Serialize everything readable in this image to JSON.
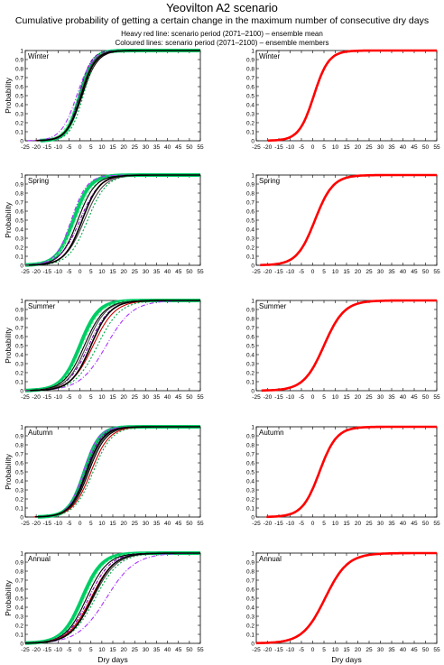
{
  "header": {
    "title": "Yeovilton A2 scenario",
    "subtitle": "Cumulative probability of getting a certain change in the maximum number of consecutive dry days",
    "legend_line1": "Heavy red line: scenario period (2071–2100) – ensemble mean",
    "legend_line2": "Coloured lines: scenario period (2071–2100) – ensemble members"
  },
  "axes": {
    "xlabel": "Dry days",
    "ylabel": "Probability",
    "xlim": [
      -25,
      55
    ],
    "ylim": [
      0,
      1
    ],
    "xticks": [
      -25,
      -20,
      -15,
      -10,
      -5,
      0,
      5,
      10,
      15,
      20,
      25,
      30,
      35,
      40,
      45,
      50,
      55
    ],
    "yticks": [
      0,
      0.1,
      0.2,
      0.3,
      0.4,
      0.5,
      0.6,
      0.7,
      0.8,
      0.9,
      1
    ],
    "ytick_labels": [
      "0",
      "0.1",
      "0.2",
      "0.3",
      "0.4",
      "0.5",
      "0.6",
      "0.7",
      "0.8",
      "0.9",
      "1"
    ],
    "grid": false
  },
  "colors": {
    "ensemble_mean": "#ff0000",
    "member_palette": [
      "#00cc66",
      "#66ff99",
      "#000000",
      "#7700aa",
      "#cc0000",
      "#00aa44",
      "#aa33ff",
      "#444444",
      "#33cc33",
      "#990066"
    ]
  },
  "chart_data": [
    {
      "type": "line",
      "panel": "left",
      "season": "Winter",
      "mean": {
        "center": 0.5,
        "spread": 3.3
      },
      "members": [
        {
          "center": 0,
          "spread": 3.0
        },
        {
          "center": -1,
          "spread": 3.2
        },
        {
          "center": 1,
          "spread": 3.5
        },
        {
          "center": -0.5,
          "spread": 2.8
        },
        {
          "center": 0.5,
          "spread": 3.4
        },
        {
          "center": 1.5,
          "spread": 3.0
        },
        {
          "center": -1.5,
          "spread": 3.6
        },
        {
          "center": 0.2,
          "spread": 3.1
        }
      ]
    },
    {
      "type": "line",
      "panel": "right",
      "season": "Winter",
      "mean": {
        "center": 0.5,
        "spread": 3.3
      },
      "members": []
    },
    {
      "type": "line",
      "panel": "left",
      "season": "Spring",
      "mean": {
        "center": 1,
        "spread": 4.0
      },
      "members": [
        {
          "center": -3,
          "spread": 3.8
        },
        {
          "center": -2,
          "spread": 4.2
        },
        {
          "center": -1,
          "spread": 4.0
        },
        {
          "center": 0,
          "spread": 4.5
        },
        {
          "center": 1,
          "spread": 4.1
        },
        {
          "center": 3.5,
          "spread": 4.3
        },
        {
          "center": -4,
          "spread": 3.6
        },
        {
          "center": 2,
          "spread": 4.4
        }
      ]
    },
    {
      "type": "line",
      "panel": "right",
      "season": "Spring",
      "mean": {
        "center": 1,
        "spread": 4.0
      },
      "members": []
    },
    {
      "type": "line",
      "panel": "left",
      "season": "Summer",
      "mean": {
        "center": 5,
        "spread": 4.5
      },
      "members": [
        {
          "center": 0,
          "spread": 4.2
        },
        {
          "center": 1,
          "spread": 4.4
        },
        {
          "center": 2,
          "spread": 4.6
        },
        {
          "center": 4,
          "spread": 4.8
        },
        {
          "center": 6,
          "spread": 5.0
        },
        {
          "center": 8,
          "spread": 5.2
        },
        {
          "center": 12,
          "spread": 6.0
        },
        {
          "center": 3,
          "spread": 4.5
        }
      ]
    },
    {
      "type": "line",
      "panel": "right",
      "season": "Summer",
      "mean": {
        "center": 5,
        "spread": 4.5
      },
      "members": []
    },
    {
      "type": "line",
      "panel": "left",
      "season": "Autumn",
      "mean": {
        "center": 3,
        "spread": 3.8
      },
      "members": [
        {
          "center": 2,
          "spread": 3.5
        },
        {
          "center": 3,
          "spread": 3.8
        },
        {
          "center": 4,
          "spread": 4.0
        },
        {
          "center": 2.5,
          "spread": 3.6
        },
        {
          "center": 5,
          "spread": 4.2
        },
        {
          "center": 6,
          "spread": 4.3
        },
        {
          "center": 1.5,
          "spread": 3.4
        },
        {
          "center": 3.5,
          "spread": 3.9
        }
      ]
    },
    {
      "type": "line",
      "panel": "right",
      "season": "Autumn",
      "mean": {
        "center": 3,
        "spread": 3.8
      },
      "members": []
    },
    {
      "type": "line",
      "panel": "left",
      "season": "Annual",
      "mean": {
        "center": 5.5,
        "spread": 5.0
      },
      "members": [
        {
          "center": 1,
          "spread": 4.5
        },
        {
          "center": 2,
          "spread": 4.6
        },
        {
          "center": 3,
          "spread": 4.8
        },
        {
          "center": 4,
          "spread": 5.0
        },
        {
          "center": 5,
          "spread": 5.2
        },
        {
          "center": 7,
          "spread": 5.5
        },
        {
          "center": 12,
          "spread": 6.5
        },
        {
          "center": 6,
          "spread": 5.3
        }
      ]
    },
    {
      "type": "line",
      "panel": "right",
      "season": "Annual",
      "mean": {
        "center": 5.5,
        "spread": 5.0
      },
      "members": []
    }
  ]
}
